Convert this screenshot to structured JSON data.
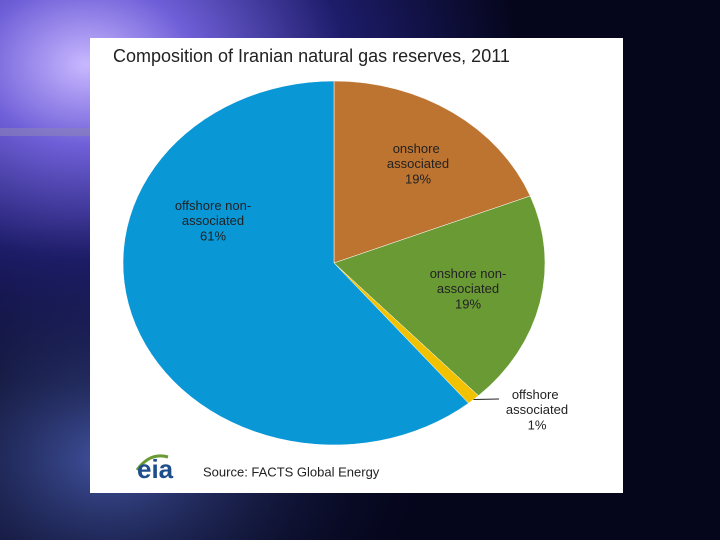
{
  "chart_data": {
    "type": "pie",
    "title": "Composition of Iranian natural gas reserves, 2011",
    "categories": [
      "onshore associated",
      "onshore non-associated",
      "offshore associated",
      "offshore non-associated"
    ],
    "values": [
      19,
      19,
      1,
      61
    ],
    "value_labels": [
      "19%",
      "19%",
      "1%",
      "61%"
    ],
    "colors": [
      "#bd7430",
      "#6a9a34",
      "#f2c200",
      "#0a97d6"
    ],
    "source": "Source: FACTS Global Energy",
    "logo": "eia"
  }
}
